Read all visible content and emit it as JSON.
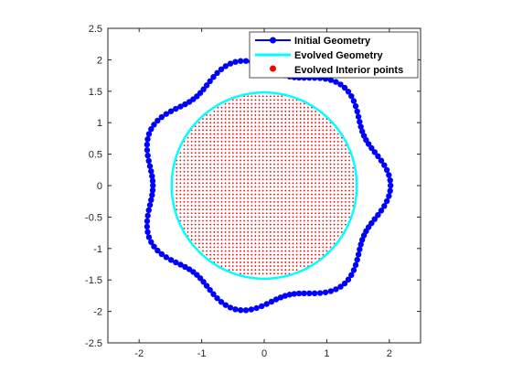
{
  "chart_data": {
    "type": "scatter",
    "xlim": [
      -2.5,
      2.5
    ],
    "ylim": [
      -2.5,
      2.5
    ],
    "xticks": [
      -2,
      -1,
      0,
      1,
      2
    ],
    "yticks": [
      -2.5,
      -2,
      -1.5,
      -1,
      -0.5,
      0,
      0.5,
      1,
      1.5,
      2,
      2.5
    ],
    "xtick_labels": [
      "-2",
      "-1",
      "0",
      "1",
      "2"
    ],
    "ytick_labels": [
      "-2.5",
      "-2",
      "-1.5",
      "-1",
      "-0.5",
      "0",
      "0.5",
      "1",
      "1.5",
      "2",
      "2.5"
    ],
    "grid": false,
    "legend_placement": "top-right",
    "series": [
      {
        "name": "Initial Geometry",
        "kind": "line-marker",
        "color": "#0000ff",
        "shape": "radius r(t) = 1.9 + 0.12*cos(7t), 150 points",
        "base_radius": 1.9,
        "amplitude": 0.12,
        "lobes": 7,
        "point_count": 150
      },
      {
        "name": "Evolved Geometry",
        "kind": "line",
        "color": "#00ffff",
        "radius": 1.48
      },
      {
        "name": "Evolved Interior points",
        "kind": "scatter",
        "color": "#ff0000",
        "spacing": 0.06,
        "radius": 1.46
      }
    ]
  }
}
